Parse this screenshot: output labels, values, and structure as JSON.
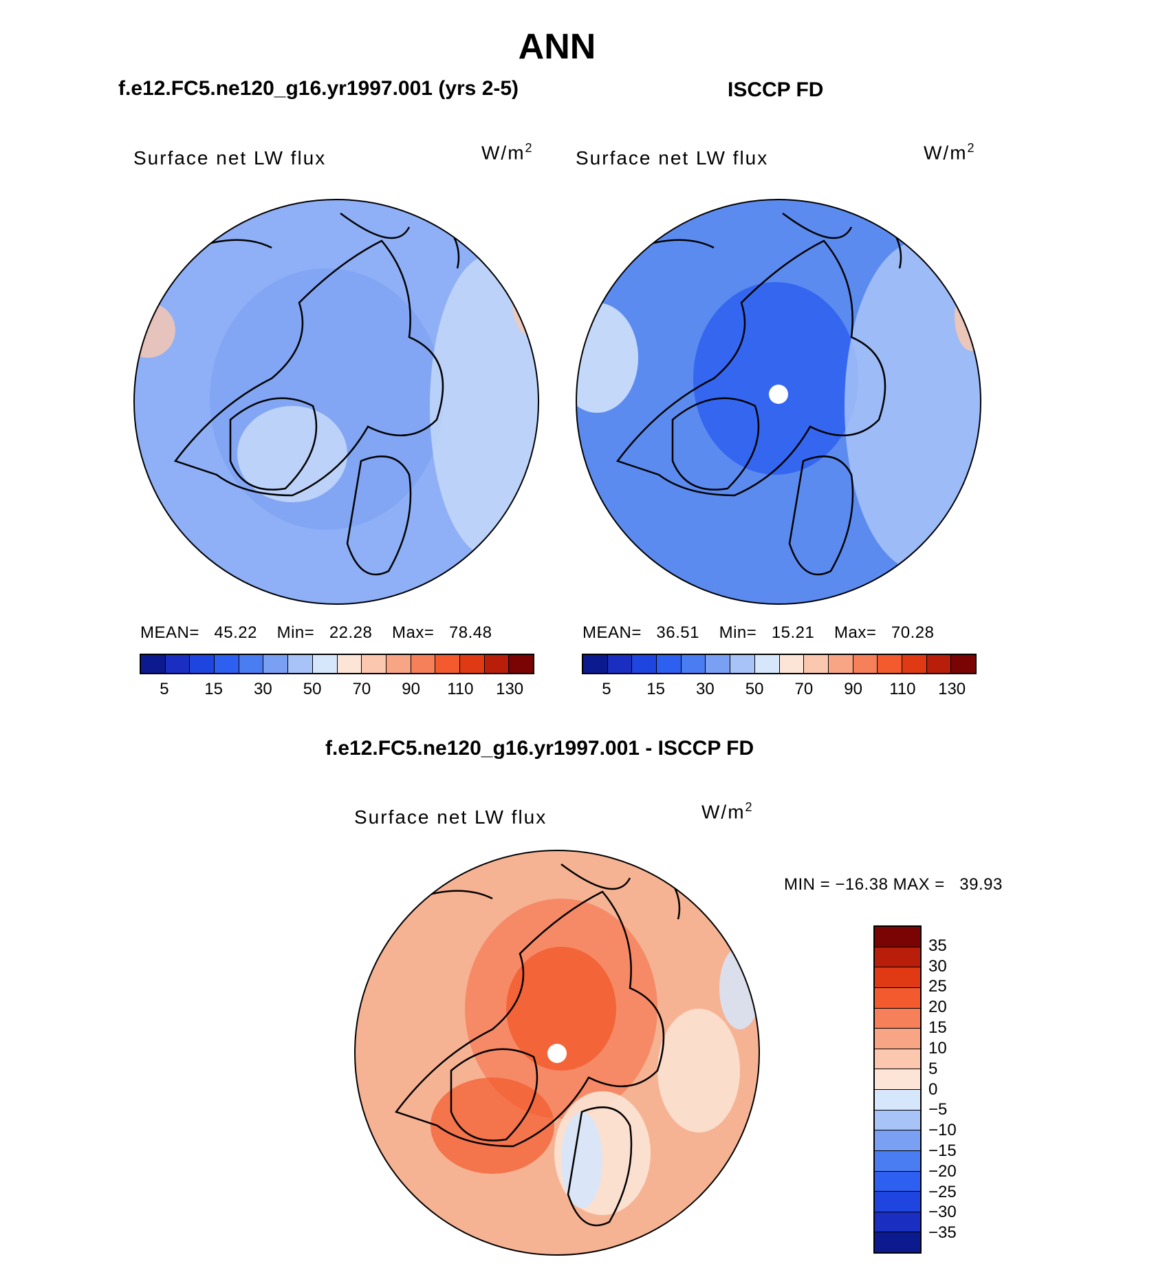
{
  "page_title": "ANN",
  "panels": {
    "model": {
      "title": "f.e12.FC5.ne120_g16.yr1997.001 (yrs 2-5)",
      "variable": "Surface net LW flux",
      "units": "W/m",
      "units_sup": "2",
      "stats": {
        "mean_label": "MEAN=",
        "mean": "45.22",
        "min_label": "Min=",
        "min": "22.28",
        "max_label": "Max=",
        "max": "78.48"
      },
      "fill": "#8fb0f6"
    },
    "obs": {
      "title": "ISCCP FD",
      "variable": "Surface net LW flux",
      "units": "W/m",
      "units_sup": "2",
      "stats": {
        "mean_label": "MEAN=",
        "mean": "36.51",
        "min_label": "Min=",
        "min": "15.21",
        "max_label": "Max=",
        "max": "70.28"
      },
      "fill": "#5c8bf0"
    },
    "diff": {
      "title": "f.e12.FC5.ne120_g16.yr1997.001 - ISCCP FD",
      "variable": "Surface net LW flux",
      "units": "W/m",
      "units_sup": "2",
      "stats": {
        "text": "MIN = −16.38 MAX =   39.93"
      },
      "fill": "#f6b394"
    }
  },
  "colorbar_top": {
    "colors": [
      "#0b1a8f",
      "#1a2ec2",
      "#1f45e0",
      "#2d5ff0",
      "#4b7df2",
      "#7aa0f4",
      "#a8c3f8",
      "#d6e6fb",
      "#fce4d6",
      "#fbc8af",
      "#f8a586",
      "#f6805a",
      "#f35a2e",
      "#e03a14",
      "#b81e0a",
      "#7a0404"
    ],
    "ticks": [
      "5",
      "15",
      "30",
      "50",
      "70",
      "90",
      "110",
      "130"
    ]
  },
  "colorbar_diff": {
    "colors": [
      "#7a0404",
      "#b81e0a",
      "#e03a14",
      "#f35a2e",
      "#f6805a",
      "#f8a586",
      "#fbc8af",
      "#fce4d6",
      "#d6e6fb",
      "#a8c3f8",
      "#7aa0f4",
      "#4b7df2",
      "#2d5ff0",
      "#1f45e0",
      "#1a2ec2",
      "#0b1a8f"
    ],
    "ticks": [
      "35",
      "30",
      "25",
      "20",
      "15",
      "10",
      "5",
      "0",
      "−5",
      "−10",
      "−15",
      "−20",
      "−25",
      "−30",
      "−35"
    ]
  }
}
